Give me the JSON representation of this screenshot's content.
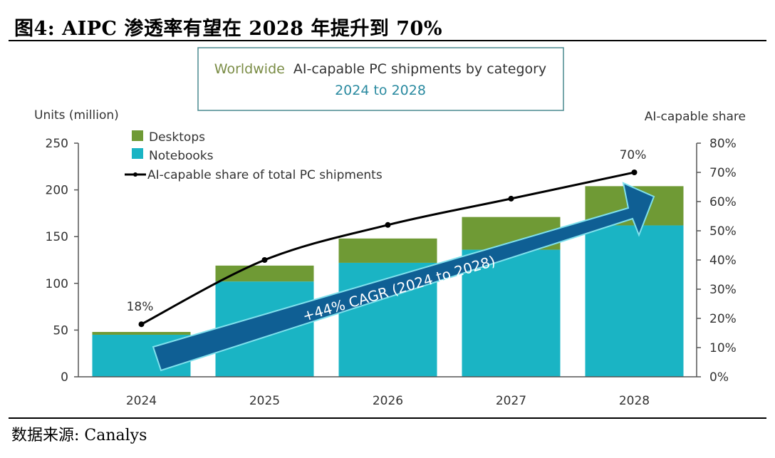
{
  "figure": {
    "title": "图4:  AIPC 渗透率有望在 2028 年提升到 70%",
    "source": "数据来源:  Canalys"
  },
  "chart_data": {
    "type": "bar",
    "stacked": true,
    "title_part1": "Worldwide",
    "title_part2": "AI-capable PC shipments by category",
    "subtitle": "2024 to 2028",
    "categories": [
      "2024",
      "2025",
      "2026",
      "2027",
      "2028"
    ],
    "series": [
      {
        "name": "Notebooks",
        "values": [
          45,
          102,
          122,
          136,
          162
        ],
        "color": "#1ab4c4"
      },
      {
        "name": "Desktops",
        "values": [
          3,
          17,
          26,
          35,
          42
        ],
        "color": "#6f9a35"
      }
    ],
    "line_series": {
      "name": "AI-capable share of total PC shipments",
      "values": [
        18,
        40,
        52,
        61,
        70
      ],
      "unit": "%",
      "color": "#000000",
      "labels": [
        {
          "index": 0,
          "text": "18%"
        },
        {
          "index": 4,
          "text": "70%"
        }
      ]
    },
    "ylabel": "Units (million)",
    "ylim": [
      0,
      250
    ],
    "yticks": [
      "0",
      "50",
      "100",
      "150",
      "200",
      "250"
    ],
    "y2label": "AI-capable share",
    "y2lim": [
      0,
      80
    ],
    "y2ticks": [
      "0%",
      "10%",
      "20%",
      "30%",
      "40%",
      "50%",
      "60%",
      "70%",
      "80%"
    ],
    "legend": [
      "Desktops",
      "Notebooks",
      "AI-capable share of total PC shipments"
    ],
    "legend_position": "top-left",
    "annotation": "+44% CAGR (2024 to 2028)",
    "colors": {
      "title_green": "#7a8c45",
      "subtitle_teal": "#2a8aa0",
      "arrow": "#0f5f94",
      "arrow_outline": "#7fe0ec",
      "box_border": "#4a8a8f"
    }
  }
}
